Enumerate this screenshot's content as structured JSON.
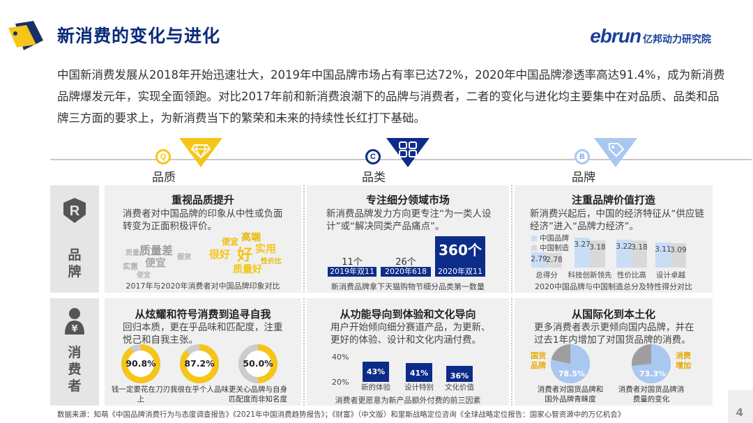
{
  "header": {
    "title": "新消费的变化与进化",
    "brand_latin": "ebrun",
    "brand_cn": "亿邦动力研究院"
  },
  "intro": "中国新消费发展从2018年开始迅速壮大，2019年中国品牌市场占有率已达72%，2020年中国品牌渗透率高达91.4%，成为新消费品牌爆发元年，实现全面领跑。对比2017年前和新消费浪潮下的品牌与消费者，二者的变化与进化均主要集中在对品质、品类和品牌三方面的要求上，为新消费当下的繁荣和未来的持续性长红打下基础。",
  "categories": [
    {
      "letter": "Q",
      "label": "品质",
      "icon": "diamond-hand-icon"
    },
    {
      "letter": "C",
      "label": "品类",
      "icon": "grid-icon"
    },
    {
      "letter": "B",
      "label": "品牌",
      "icon": "price-tag-icon"
    }
  ],
  "rows": {
    "brand": {
      "icon_letter": "R",
      "label": [
        "品",
        "牌"
      ]
    },
    "consumer": {
      "icon_symbol": "¥",
      "label": [
        "消",
        "费",
        "者"
      ]
    }
  },
  "panels": {
    "quality_brand": {
      "title": "重视品质提升",
      "text": "消费者对中国品牌的印象从中性或负面转变为正面积极评价。",
      "cloud_2017": [
        "质量差",
        "便宜",
        "实惠",
        "假货",
        "质量",
        "便宜"
      ],
      "cloud_2020": [
        "高端",
        "便宜",
        "实用",
        "很好",
        "好",
        "性价比",
        "质量好"
      ],
      "caption": "2017年与2020年消费者对中国品牌印象对比"
    },
    "category_brand": {
      "title": "专注细分领域市场",
      "text": "新消费品牌发力方向更专注“为一类人设计”或“解决同类产品痛点”。",
      "caption": "新消费品牌拿下天猫购物节细分品类第一数量"
    },
    "brand_brand": {
      "title": "注重品牌价值打造",
      "text": "新消费兴起后，中国的经济特征从“供应链经济”进入“品牌力经济”。",
      "caption": "2020中国品牌与中国制造总分及特性得分对比"
    },
    "quality_consumer": {
      "title": "从炫耀和符号消费到追寻自我",
      "text": "回归本质，更在乎品味和匹配度，注重悦己和自我主张。"
    },
    "category_consumer": {
      "title": "从功能导向到体验和文化导向",
      "text": "用户开始倾向细分赛道产品，为更新、更好的体验、设计和文化内涵付费。",
      "caption": "消费者更愿意为新产品额外付费的前三因素"
    },
    "brand_consumer": {
      "title": "从国际化到本土化",
      "text": "更多消费者表示更倾向国内品牌，并在过去1年内增加了对国货品牌的消费。"
    }
  },
  "chart_data": [
    {
      "type": "bar",
      "categories": [
        "2019年双11",
        "2020年618",
        "2020年双11"
      ],
      "values": [
        11,
        26,
        360
      ],
      "value_labels": [
        "11个",
        "26个",
        "360个"
      ]
    },
    {
      "type": "bar",
      "categories": [
        "总得分",
        "科技创新领先",
        "性价比高",
        "设计卓越"
      ],
      "series": [
        {
          "name": "中国品牌",
          "values": [
            2.79,
            3.27,
            3.22,
            3.11
          ]
        },
        {
          "name": "中国制造",
          "values": [
            2.78,
            3.18,
            3.18,
            3.09
          ]
        }
      ],
      "colors": [
        "#c9ddf7",
        "#d9d9d9"
      ]
    },
    {
      "type": "pie",
      "items": [
        {
          "value_label": "90.8%",
          "value": 90.8,
          "label": "钱一定要花在刀刃上"
        },
        {
          "value_label": "87.2%",
          "value": 87.2,
          "label": "我很在乎个人品味"
        },
        {
          "value_label": "50.0%",
          "value": 50.0,
          "label": "更关心品牌与自身匹配度而非知名度"
        }
      ],
      "colors": [
        "#f5c518",
        "#cccccc"
      ]
    },
    {
      "type": "bar",
      "categories": [
        "新的体验",
        "设计特别",
        "文化价值"
      ],
      "values": [
        43,
        41,
        36
      ],
      "value_labels": [
        "43%",
        "41%",
        "36%"
      ],
      "yticks": [
        "40%",
        "20%"
      ]
    },
    {
      "type": "pie",
      "items": [
        {
          "value_label": "78.5%",
          "value": 78.5,
          "tag": "国货品牌",
          "label": "消费者对国货品牌和国外品牌青睐度"
        },
        {
          "value_label": "73.3%",
          "value": 73.3,
          "tag": "消费增加",
          "label": "消费者对国货品牌消费量的变化"
        }
      ],
      "colors": [
        "#a8c8f0",
        "#9e9e9e"
      ]
    }
  ],
  "footer": {
    "source": "数据来源：知萌《中国品牌消费行为与态度调查报告》《2021年中国消费趋势报告》；《财富》（中文版）和里斯战略定位咨询《全球战略定位报告：国家心智资源中的万亿机会》",
    "page": "4"
  }
}
